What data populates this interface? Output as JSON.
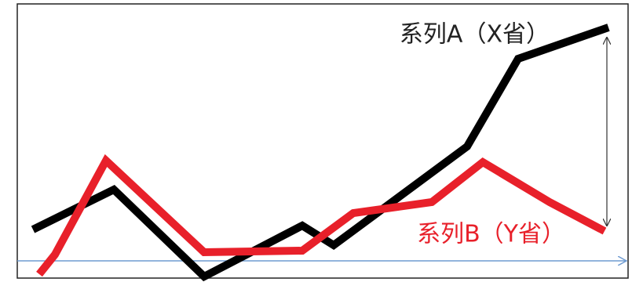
{
  "chart_data": {
    "type": "line",
    "xlim": [
      0,
      778
    ],
    "ylim": [
      -22,
      328
    ],
    "series": [
      {
        "name": "系列A（X省）",
        "color": "#000000",
        "x": [
          20,
          123,
          238,
          363,
          403,
          573,
          638,
          753
        ],
        "values": [
          40,
          91,
          -20,
          45,
          20,
          146,
          258,
          298
        ]
      },
      {
        "name": "系列B（Y省）",
        "color": "#e8202a",
        "x": [
          28,
          48,
          113,
          238,
          363,
          428,
          528,
          593,
          678,
          748
        ],
        "values": [
          -17,
          8,
          128,
          11,
          13,
          61,
          75,
          126,
          75,
          38
        ]
      }
    ]
  }
}
